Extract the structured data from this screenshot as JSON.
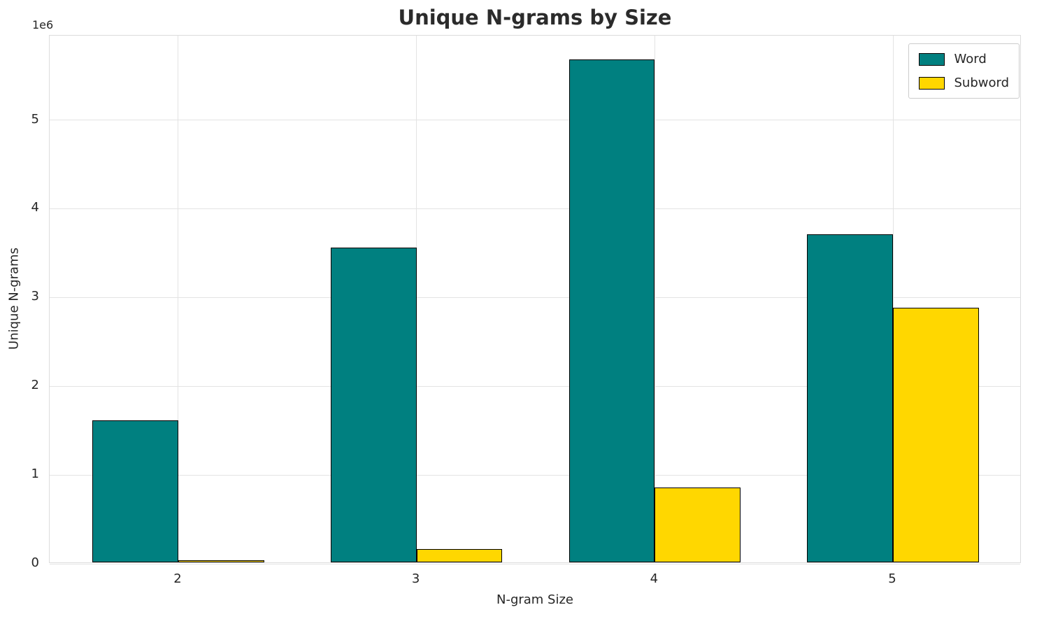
{
  "chart_data": {
    "type": "bar",
    "title": "Unique N-grams by Size",
    "xlabel": "N-gram Size",
    "ylabel": "Unique N-grams",
    "y_offset_label": "1e6",
    "categories": [
      "2",
      "3",
      "4",
      "5"
    ],
    "series": [
      {
        "name": "Word",
        "color": "#008080",
        "values": [
          1600000,
          3550000,
          5670000,
          3700000
        ]
      },
      {
        "name": "Subword",
        "color": "#FFD700",
        "values": [
          20000,
          150000,
          840000,
          2870000
        ]
      }
    ],
    "ylim": [
      0,
      5950000
    ],
    "yticks": [
      0,
      1000000,
      2000000,
      3000000,
      4000000,
      5000000
    ],
    "ytick_labels": [
      "0",
      "1",
      "2",
      "3",
      "4",
      "5"
    ],
    "bar_edge_color": "#000000",
    "grid": true,
    "legend_position": "upper right"
  }
}
